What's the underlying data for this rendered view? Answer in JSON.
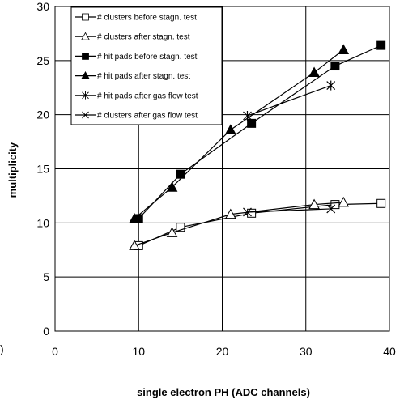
{
  "chart_data": {
    "type": "line",
    "title": "",
    "xlabel": "single electron PH (ADC channels)",
    "ylabel": "multiplicity",
    "xlim": [
      0,
      40
    ],
    "ylim": [
      0,
      30
    ],
    "x_ticks": [
      0,
      10,
      20,
      30,
      40
    ],
    "y_ticks": [
      0,
      5,
      10,
      15,
      20,
      25,
      30
    ],
    "grid": "major gridlines on both axes",
    "legend_position": "top-left",
    "stray_label": ")",
    "series": [
      {
        "name": "# clusters before stagn. test",
        "marker": "open-square",
        "x": [
          10,
          15,
          23.5,
          33.5,
          39
        ],
        "y": [
          7.9,
          9.6,
          10.9,
          11.7,
          11.8
        ]
      },
      {
        "name": "# clusters after stagn. test",
        "marker": "open-triangle",
        "x": [
          9.5,
          14,
          21,
          31,
          34.5
        ],
        "y": [
          7.9,
          9.1,
          10.8,
          11.7,
          11.9
        ]
      },
      {
        "name": "# hit pads before stagn. test",
        "marker": "filled-square",
        "x": [
          10,
          15,
          23.5,
          33.5,
          39
        ],
        "y": [
          10.4,
          14.5,
          19.2,
          24.5,
          26.4
        ]
      },
      {
        "name": "# hit pads after stagn. test",
        "marker": "filled-triangle",
        "x": [
          9.5,
          14,
          21,
          31,
          34.5
        ],
        "y": [
          10.4,
          13.3,
          18.6,
          23.9,
          26.0
        ]
      },
      {
        "name": "# hit pads after gas flow test",
        "marker": "asterisk",
        "x": [
          23,
          33
        ],
        "y": [
          19.9,
          22.7
        ]
      },
      {
        "name": "# clusters after gas flow test",
        "marker": "x-cross",
        "x": [
          23,
          33
        ],
        "y": [
          11.0,
          11.3
        ]
      }
    ]
  }
}
